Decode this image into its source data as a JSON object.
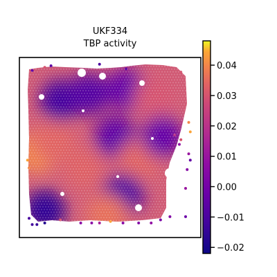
{
  "chart_data": {
    "type": "heatmap",
    "title": "UKF334",
    "subtitle": "TBP activity",
    "xlabel": "",
    "ylabel": "",
    "colormap": "plasma",
    "colorbar": {
      "range": [
        -0.022,
        0.048
      ],
      "ticks": [
        0.04,
        0.03,
        0.02,
        0.01,
        0.0,
        -0.01,
        -0.02
      ],
      "tick_labels": [
        "0.04",
        "0.03",
        "0.02",
        "0.01",
        "0.00",
        "−0.01",
        "−0.02"
      ]
    },
    "regions": [
      {
        "label": "upper-left low",
        "center": [
          0.2,
          0.78
        ],
        "value": -0.012
      },
      {
        "label": "upper-center low",
        "center": [
          0.38,
          0.82
        ],
        "value": -0.008
      },
      {
        "label": "top-right band",
        "center": [
          0.62,
          0.85
        ],
        "value": -0.004
      },
      {
        "label": "top-right high",
        "center": [
          0.8,
          0.8
        ],
        "value": 0.03
      },
      {
        "label": "left edge high",
        "center": [
          0.05,
          0.45
        ],
        "value": 0.04
      },
      {
        "label": "left band high",
        "center": [
          0.15,
          0.52
        ],
        "value": 0.034
      },
      {
        "label": "middle-left high",
        "center": [
          0.35,
          0.35
        ],
        "value": 0.033
      },
      {
        "label": "center low",
        "center": [
          0.55,
          0.55
        ],
        "value": -0.006
      },
      {
        "label": "center-right high",
        "center": [
          0.7,
          0.4
        ],
        "value": 0.034
      },
      {
        "label": "right side low",
        "center": [
          0.85,
          0.55
        ],
        "value": -0.004
      },
      {
        "label": "lower-center low",
        "center": [
          0.6,
          0.18
        ],
        "value": -0.01
      },
      {
        "label": "bottom-left low",
        "center": [
          0.1,
          0.08
        ],
        "value": -0.016
      },
      {
        "label": "bottom-center high",
        "center": [
          0.5,
          0.05
        ],
        "value": 0.036
      }
    ],
    "grid": false,
    "legend": "colorbar-right"
  }
}
